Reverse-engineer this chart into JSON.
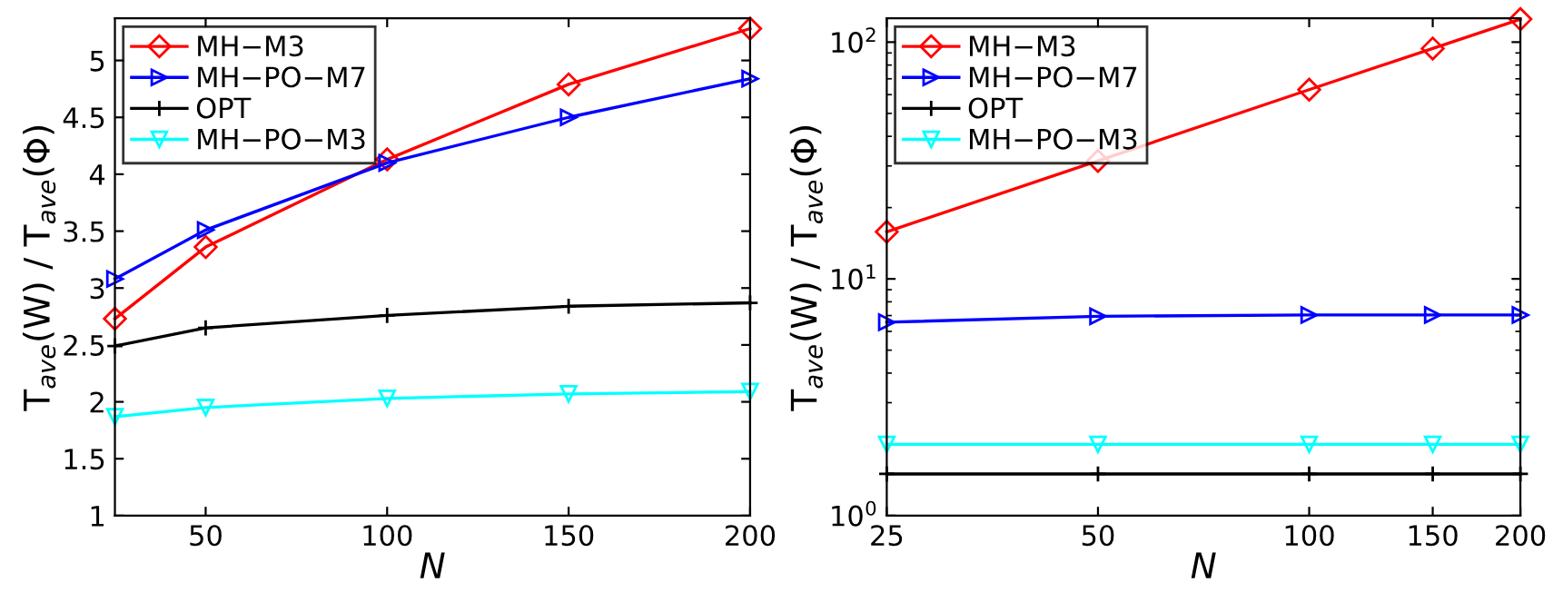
{
  "chart_data": [
    {
      "type": "line",
      "xlabel": "N",
      "ylabel": "T$_{ave}$(W) / T$_{ave}$(Φ)",
      "x": [
        25,
        50,
        100,
        150,
        200
      ],
      "xlim": [
        25,
        200
      ],
      "xticks": [
        50,
        100,
        150,
        200
      ],
      "ylim": [
        1,
        5.37
      ],
      "yticks": [
        1,
        1.5,
        2,
        2.5,
        3,
        3.5,
        4,
        4.5,
        5
      ],
      "legend": "top left",
      "grid": false,
      "line_style": "solid",
      "series": [
        {
          "name": "MH−M3",
          "color": "#ff0000",
          "marker": "diamond",
          "values": [
            2.73,
            3.36,
            4.13,
            4.79,
            5.28
          ]
        },
        {
          "name": "MH−PO−M7",
          "color": "#0000ff",
          "marker": "triangle-right",
          "values": [
            3.08,
            3.51,
            4.1,
            4.5,
            4.84
          ]
        },
        {
          "name": "OPT",
          "color": "#000000",
          "marker": "plus",
          "values": [
            2.49,
            2.65,
            2.76,
            2.84,
            2.87
          ]
        },
        {
          "name": "MH−PO−M3",
          "color": "#00ffff",
          "marker": "triangle-down",
          "values": [
            1.87,
            1.95,
            2.03,
            2.07,
            2.09
          ]
        }
      ]
    },
    {
      "type": "line",
      "xlabel": "N",
      "ylabel": "T$_{ave}$(W) / T$_{ave}$(Φ)",
      "x": [
        25,
        50,
        100,
        150,
        200
      ],
      "log": "xy",
      "xlim": [
        25,
        200
      ],
      "xticks": [
        25,
        50,
        100,
        150,
        200
      ],
      "ylim": [
        1,
        126
      ],
      "yticks": [
        {
          "value": 1,
          "label": "10$^{0}$"
        },
        {
          "value": 10,
          "label": "10$^{1}$"
        },
        {
          "value": 100,
          "label": "10$^{2}$"
        }
      ],
      "legend": "top left",
      "grid": false,
      "line_style": "solid",
      "series": [
        {
          "name": "MH−M3",
          "color": "#ff0000",
          "marker": "diamond",
          "values": [
            15.8,
            31.5,
            63,
            94,
            125
          ]
        },
        {
          "name": "MH−PO−M7",
          "color": "#0000ff",
          "marker": "triangle-right",
          "values": [
            6.56,
            6.95,
            7.04,
            7.04,
            7.04
          ]
        },
        {
          "name": "OPT",
          "color": "#000000",
          "marker": "plus",
          "values": [
            1.5,
            1.5,
            1.5,
            1.5,
            1.5
          ]
        },
        {
          "name": "MH−PO−M3",
          "color": "#00ffff",
          "marker": "triangle-down",
          "values": [
            2.0,
            2.0,
            2.0,
            2.0,
            2.0
          ]
        }
      ]
    }
  ]
}
